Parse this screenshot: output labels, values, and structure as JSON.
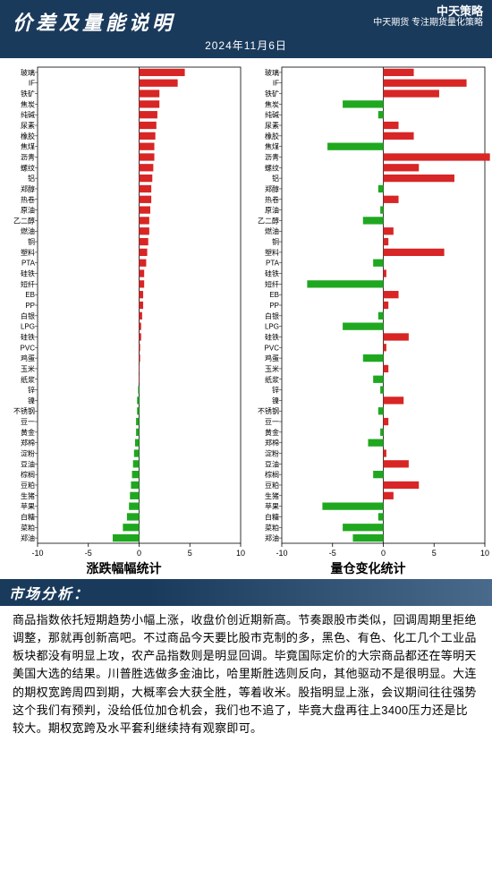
{
  "header": {
    "title": "价差及量能说明",
    "date": "2024年11月6日",
    "logo_line1": "中天策略",
    "logo_line2": "中天期货 专注期货量化策略"
  },
  "chart": {
    "type": "horizontal_bar_dual",
    "categories": [
      "玻璃",
      "IF",
      "铁矿",
      "焦炭",
      "纯碱",
      "尿素",
      "橡胶",
      "焦煤",
      "沥青",
      "螺纹",
      "铝",
      "郑醇",
      "热卷",
      "原油",
      "乙二醇",
      "燃油",
      "铜",
      "塑料",
      "PTA",
      "硅铁",
      "短纤",
      "EB",
      "PP",
      "白银",
      "LPG",
      "硅铁",
      "PVC",
      "鸡蛋",
      "玉米",
      "纸浆",
      "锌",
      "镍",
      "不锈钢",
      "豆一",
      "黄金",
      "郑棉",
      "淀粉",
      "豆油",
      "棕榈",
      "豆粕",
      "生猪",
      "苹果",
      "白糖",
      "菜粕",
      "郑油"
    ],
    "left": {
      "title": "涨跌幅幅统计",
      "xlim": [
        -10,
        10
      ],
      "xticks": [
        -10,
        -5,
        0,
        5,
        10
      ],
      "values": [
        4.5,
        3.8,
        2.0,
        2.0,
        1.8,
        1.7,
        1.6,
        1.5,
        1.5,
        1.4,
        1.3,
        1.2,
        1.2,
        1.1,
        1.0,
        1.0,
        0.9,
        0.8,
        0.7,
        0.5,
        0.5,
        0.4,
        0.4,
        0.3,
        0.2,
        0.2,
        0.1,
        0.1,
        0.0,
        0.0,
        -0.1,
        -0.2,
        -0.2,
        -0.3,
        -0.3,
        -0.4,
        -0.5,
        -0.6,
        -0.7,
        -0.8,
        -0.9,
        -1.0,
        -1.2,
        -1.6,
        -2.6
      ]
    },
    "right": {
      "title": "量仓变化统计",
      "xlim": [
        -10,
        10
      ],
      "xticks": [
        -10,
        -5,
        0,
        5,
        10
      ],
      "values": [
        3.0,
        8.2,
        5.5,
        -4.0,
        -0.5,
        1.5,
        3.0,
        -5.5,
        10.5,
        3.5,
        7.0,
        -0.5,
        1.5,
        -0.3,
        -2.0,
        1.0,
        0.5,
        6.0,
        -1.0,
        0.3,
        -7.5,
        1.5,
        0.5,
        -0.5,
        -4.0,
        2.5,
        0.3,
        -2.0,
        0.5,
        -1.0,
        -0.3,
        2.0,
        -0.5,
        0.5,
        -0.3,
        -1.5,
        0.3,
        2.5,
        -1.0,
        3.5,
        1.0,
        -6.0,
        -0.5,
        -4.0,
        -3.0
      ]
    },
    "pos_color": "#d82525",
    "neg_color": "#1fa81f",
    "label_fontsize": 8,
    "tick_fontsize": 9,
    "title_fontsize": 14,
    "bg": "#ffffff",
    "axis_color": "#000000"
  },
  "analysis": {
    "section_title": "市场分析：",
    "body": "商品指数依托短期趋势小幅上涨，收盘价创近期新高。节奏跟股市类似，回调周期里拒绝调整，那就再创新高吧。不过商品今天要比股市克制的多，黑色、有色、化工几个工业品板块都没有明显上攻，农产品指数则是明显回调。毕竟国际定价的大宗商品都还在等明天美国大选的结果。川普胜选做多金油比，哈里斯胜选则反向，其他驱动不是很明显。大连的期权宽跨周四到期，大概率会大获全胜，等着收米。股指明显上涨，会议期间往往强势这个我们有预判，没给低位加仓机会，我们也不追了，毕竟大盘再往上3400压力还是比较大。期权宽跨及水平套利继续持有观察即可。"
  }
}
